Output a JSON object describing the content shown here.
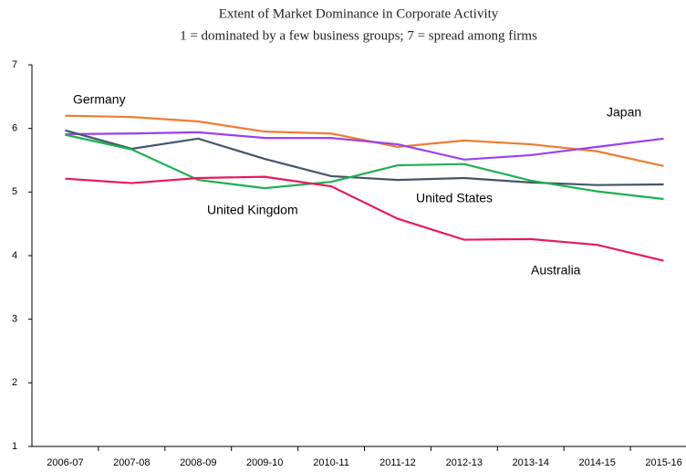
{
  "chart_data": {
    "type": "line",
    "title": "Extent of Market Dominance in Corporate Activity",
    "subtitle": "1 = dominated by a few business groups; 7 = spread among firms",
    "categories": [
      "2006-07",
      "2007-08",
      "2008-09",
      "2009-10",
      "2010-11",
      "2011-12",
      "2012-13",
      "2013-14",
      "2014-15",
      "2015-16"
    ],
    "series": [
      {
        "name": "Germany",
        "color": "#ed7d31",
        "values": [
          6.2,
          6.18,
          6.11,
          5.95,
          5.92,
          5.71,
          5.81,
          5.75,
          5.64,
          5.41
        ]
      },
      {
        "name": "Japan",
        "color": "#9b3ff0",
        "values": [
          5.91,
          5.92,
          5.94,
          5.85,
          5.85,
          5.75,
          5.51,
          5.58,
          5.71,
          5.84
        ]
      },
      {
        "name": "United States",
        "color": "#44546a",
        "values": [
          5.97,
          5.68,
          5.84,
          5.52,
          5.25,
          5.19,
          5.22,
          5.15,
          5.11,
          5.12
        ]
      },
      {
        "name": "United Kingdom",
        "color": "#1fb04e",
        "values": [
          5.9,
          5.67,
          5.19,
          5.06,
          5.16,
          5.42,
          5.44,
          5.18,
          5.01,
          4.89
        ]
      },
      {
        "name": "Australia",
        "color": "#e8185f",
        "values": [
          5.21,
          5.14,
          5.22,
          5.24,
          5.09,
          4.58,
          4.25,
          4.26,
          4.17,
          3.92
        ]
      }
    ],
    "ylim": [
      1,
      7
    ],
    "yticks": [
      1,
      2,
      3,
      4,
      5,
      6,
      7
    ],
    "grid": false
  }
}
